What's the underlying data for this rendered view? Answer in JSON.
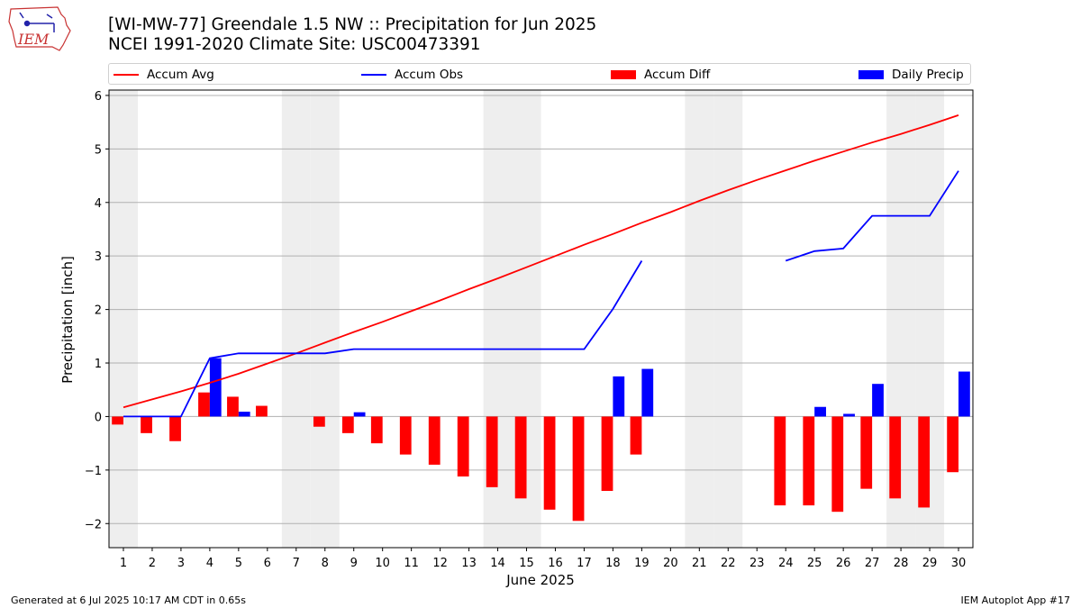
{
  "header": {
    "title": "[WI-MW-77] Greendale 1.5 NW :: Precipitation for Jun 2025",
    "subtitle": "NCEI 1991-2020 Climate Site: USC00473391",
    "logo_text": "IEM"
  },
  "footer": {
    "generated": "Generated at 6 Jul 2025 10:17 AM CDT in 0.65s",
    "app": "IEM Autoplot App #17"
  },
  "colors": {
    "accum_avg": "#ff0000",
    "accum_obs": "#0000ff",
    "accum_diff": "#ff0000",
    "daily_precip": "#0000ff",
    "weekend_shade": "#eeeeee",
    "grid": "#b0b0b0"
  },
  "chart_data": {
    "type": "bar",
    "xlabel": "June 2025",
    "ylabel": "Precipitation [inch]",
    "xlim": [
      0.5,
      30.5
    ],
    "ylim": [
      -2.45,
      6.1
    ],
    "yticks": [
      -2,
      -1,
      0,
      1,
      2,
      3,
      4,
      5,
      6
    ],
    "ytick_labels": [
      "−2",
      "−1",
      "0",
      "1",
      "2",
      "3",
      "4",
      "5",
      "6"
    ],
    "grid": "horizontal",
    "legend_placement": "top",
    "days": [
      1,
      2,
      3,
      4,
      5,
      6,
      7,
      8,
      9,
      10,
      11,
      12,
      13,
      14,
      15,
      16,
      17,
      18,
      19,
      20,
      21,
      22,
      23,
      24,
      25,
      26,
      27,
      28,
      29,
      30
    ],
    "weekend_days": [
      1,
      7,
      8,
      14,
      15,
      21,
      22,
      28,
      29
    ],
    "series": [
      {
        "name": "Accum Avg",
        "kind": "line",
        "values": [
          0.17,
          0.32,
          0.47,
          0.63,
          0.8,
          0.99,
          1.18,
          1.38,
          1.58,
          1.77,
          1.97,
          2.17,
          2.38,
          2.58,
          2.79,
          3.0,
          3.21,
          3.41,
          3.62,
          3.82,
          4.03,
          4.23,
          4.42,
          4.6,
          4.78,
          4.95,
          5.12,
          5.28,
          5.45,
          5.63
        ]
      },
      {
        "name": "Accum Obs",
        "kind": "line",
        "values": [
          0.0,
          0.0,
          0.0,
          1.09,
          1.18,
          1.18,
          1.18,
          1.18,
          1.26,
          1.26,
          1.26,
          1.26,
          1.26,
          1.26,
          1.26,
          1.26,
          1.26,
          2.01,
          2.91,
          null,
          null,
          null,
          null,
          2.91,
          3.09,
          3.14,
          3.75,
          3.75,
          3.75,
          4.59
        ]
      },
      {
        "name": "Accum Diff",
        "kind": "bar",
        "values": [
          -0.15,
          -0.31,
          -0.46,
          0.45,
          0.37,
          0.2,
          0.0,
          -0.19,
          -0.31,
          -0.5,
          -0.71,
          -0.9,
          -1.12,
          -1.32,
          -1.53,
          -1.74,
          -1.95,
          -1.39,
          -0.71,
          null,
          null,
          null,
          null,
          -1.66,
          -1.66,
          -1.78,
          -1.35,
          -1.53,
          -1.7,
          -1.04
        ]
      },
      {
        "name": "Daily Precip",
        "kind": "bar",
        "values": [
          0,
          0,
          0,
          1.09,
          0.09,
          0,
          0,
          0,
          0.08,
          0,
          0,
          0,
          0,
          0,
          0,
          0,
          0,
          0.75,
          0.89,
          null,
          null,
          null,
          null,
          0,
          0.18,
          0.05,
          0.61,
          0,
          0,
          0.84
        ]
      }
    ]
  }
}
